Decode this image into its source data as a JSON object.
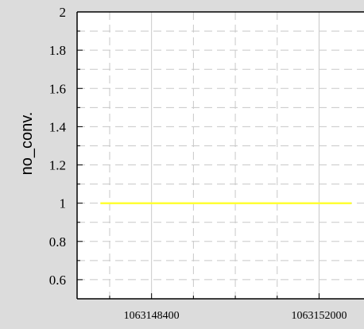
{
  "chart_data": {
    "type": "line",
    "title": "",
    "xlabel": "",
    "ylabel": "no_conv.",
    "xlim": [
      1063146800,
      1063153000
    ],
    "ylim": [
      0.5,
      2
    ],
    "x_ticks": [
      1063148400,
      1063152000
    ],
    "x_minor_ticks": [
      1063147500,
      1063149300,
      1063150200,
      1063151100
    ],
    "y_ticks": [
      0.6,
      0.8,
      1,
      1.2,
      1.4,
      1.6,
      1.8,
      2
    ],
    "y_tick_labels": [
      "0.6",
      "0.8",
      "1",
      "1.2",
      "1.4",
      "1.6",
      "1.8",
      "2"
    ],
    "x_tick_labels": [
      "1063148400",
      "1063152000"
    ],
    "grid": true,
    "series": [
      {
        "color": "#ffff33",
        "x": [
          1063147300,
          1063152700
        ],
        "y": [
          1,
          1
        ]
      }
    ],
    "colors": {
      "background": "#dcdcdc",
      "plot_area": "#ffffff",
      "grid": "#c8c8c8",
      "axis": "#000000",
      "line": "#ffff33"
    }
  }
}
